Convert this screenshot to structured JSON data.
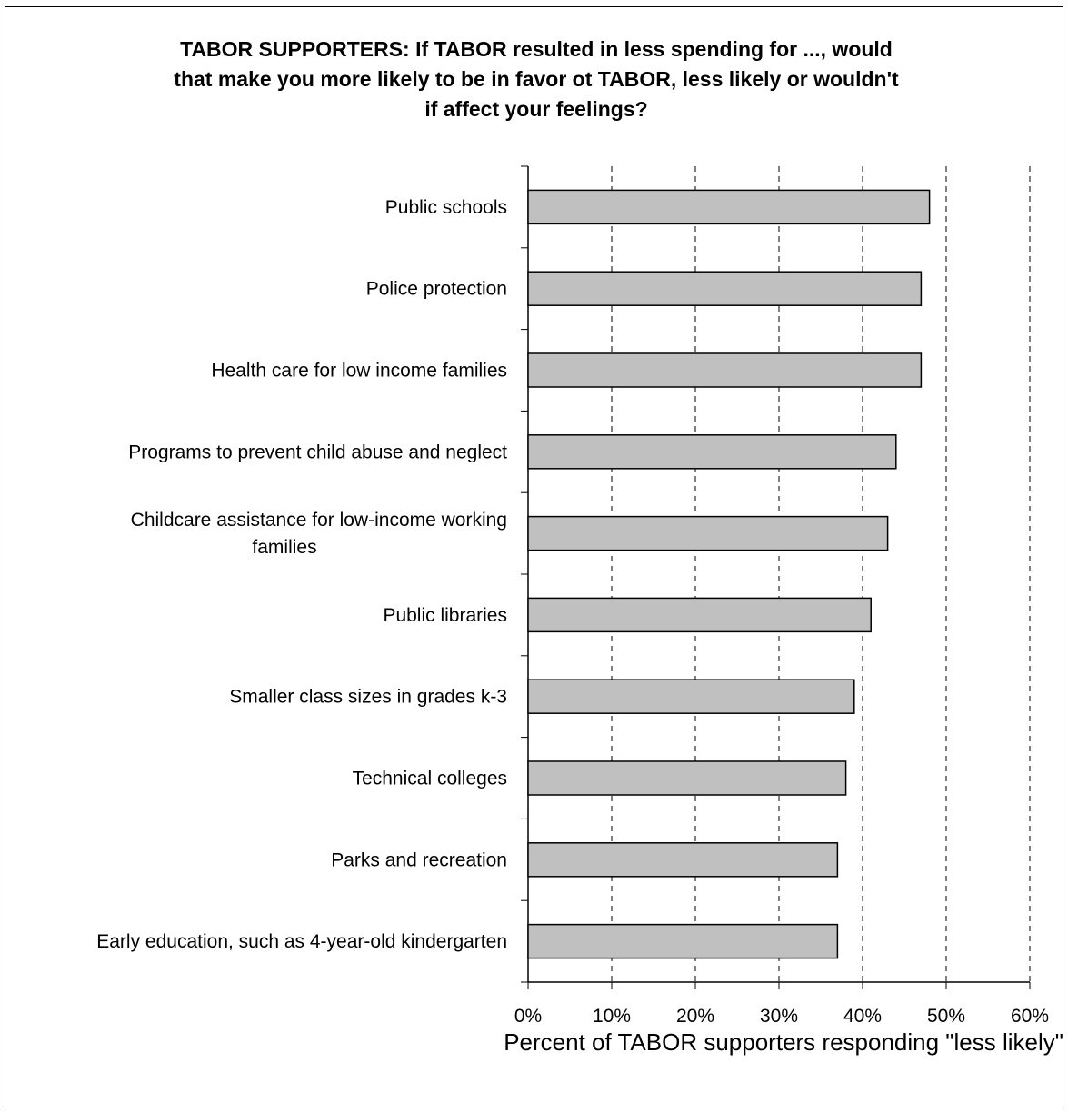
{
  "chart_data": {
    "type": "bar",
    "orientation": "horizontal",
    "title_lines": [
      "TABOR SUPPORTERS:  If TABOR resulted in less spending for ..., would",
      "that make you more likely to be in favor ot TABOR, less likely or wouldn't",
      "if affect your feelings?"
    ],
    "categories": [
      [
        "Public schools"
      ],
      [
        "Police protection"
      ],
      [
        "Health care for low income families"
      ],
      [
        "Programs to prevent child abuse and neglect"
      ],
      [
        "Childcare assistance for low-income working",
        "families"
      ],
      [
        "Public libraries"
      ],
      [
        "Smaller class sizes in grades k-3"
      ],
      [
        "Technical colleges"
      ],
      [
        "Parks and recreation"
      ],
      [
        "Early education, such as 4-year-old kindergarten"
      ]
    ],
    "values": [
      48,
      47,
      47,
      44,
      43,
      41,
      39,
      38,
      37,
      37
    ],
    "xlim": [
      0,
      60
    ],
    "xticks": [
      0,
      10,
      20,
      30,
      40,
      50,
      60
    ],
    "xtick_labels": [
      "0%",
      "10%",
      "20%",
      "30%",
      "40%",
      "50%",
      "60%"
    ],
    "xlabel": "Percent of TABOR supporters responding \"less likely\"",
    "grid": "vertical dashed",
    "bar_color": "#c0c0c0",
    "bar_edge_color": "#000000"
  }
}
